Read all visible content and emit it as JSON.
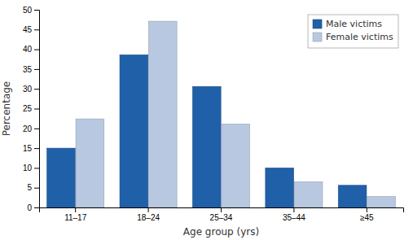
{
  "chart_data": {
    "type": "bar",
    "categories": [
      "11–17",
      "18–24",
      "25–34",
      "35–44",
      "≥45"
    ],
    "series": [
      {
        "name": "Male victims",
        "color": "#2060a8",
        "values": [
          15.0,
          38.6,
          30.6,
          10.0,
          5.6
        ]
      },
      {
        "name": "Female victims",
        "color": "#b8c8e0",
        "values": [
          22.4,
          47.1,
          21.1,
          6.5,
          2.8
        ]
      }
    ],
    "xlabel": "Age group (yrs)",
    "ylabel": "Percentage",
    "ylim": [
      0,
      50
    ],
    "yticks": [
      0,
      5,
      10,
      15,
      20,
      25,
      30,
      35,
      40,
      45,
      50
    ],
    "legend": "upper right",
    "grid": false
  }
}
